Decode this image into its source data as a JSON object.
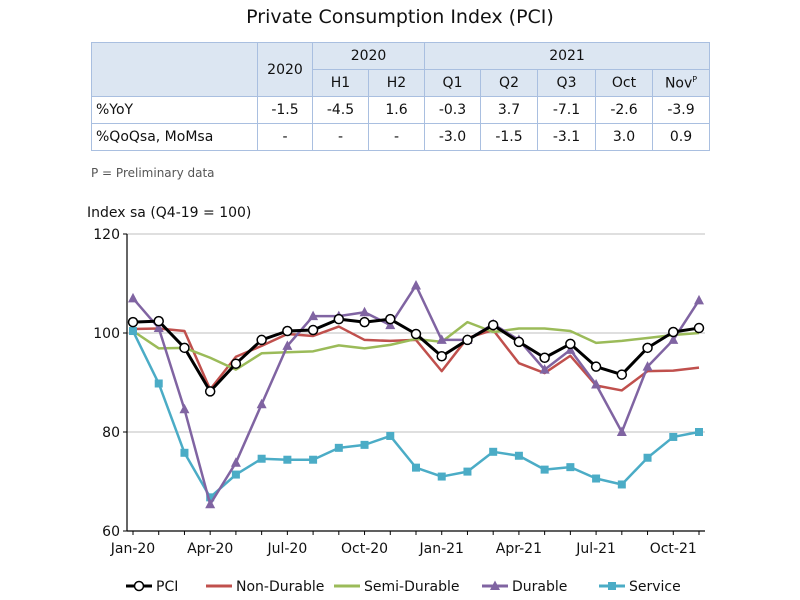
{
  "title": "Private Consumption Index (PCI)",
  "table": {
    "group_headers": [
      "2020",
      "2021"
    ],
    "col_headers": [
      "2020",
      "H1",
      "H2",
      "Q1",
      "Q2",
      "Q3",
      "Oct",
      "Nov"
    ],
    "nov_superscript": "P",
    "rows": [
      {
        "label": "%YoY",
        "values": [
          "-1.5",
          "-4.5",
          "1.6",
          "-0.3",
          "3.7",
          "-7.1",
          "-2.6",
          "-3.9"
        ]
      },
      {
        "label": "%QoQsa, MoMsa",
        "values": [
          "-",
          "-",
          "-",
          "-3.0",
          "-1.5",
          "-3.1",
          "3.0",
          "0.9"
        ]
      }
    ]
  },
  "note": "P = Preliminary data",
  "colors": {
    "pci": "#000000",
    "non_durable": "#c0504d",
    "semi_durable": "#9bbb59",
    "durable": "#8064a2",
    "service": "#4bacc6",
    "grid": "#bfbfbf"
  },
  "chart_data": {
    "type": "line",
    "ylabel": "Index sa (Q4-19 = 100)",
    "ylim": [
      60,
      120
    ],
    "yticks": [
      60,
      80,
      100,
      120
    ],
    "x_months": [
      "Jan-20",
      "Feb-20",
      "Mar-20",
      "Apr-20",
      "May-20",
      "Jun-20",
      "Jul-20",
      "Aug-20",
      "Sep-20",
      "Oct-20",
      "Nov-20",
      "Dec-20",
      "Jan-21",
      "Feb-21",
      "Mar-21",
      "Apr-21",
      "May-21",
      "Jun-21",
      "Jul-21",
      "Aug-21",
      "Sep-21",
      "Oct-21",
      "Nov-21"
    ],
    "xticks": [
      "Jan-20",
      "Apr-20",
      "Jul-20",
      "Oct-20",
      "Jan-21",
      "Apr-21",
      "Jul-21",
      "Oct-21"
    ],
    "legend_position": "bottom",
    "series": [
      {
        "name": "PCI",
        "key": "pci",
        "marker": "circle",
        "values": [
          102.2,
          102.4,
          97.0,
          88.2,
          93.8,
          98.6,
          100.4,
          100.6,
          102.8,
          102.2,
          102.8,
          99.8,
          95.3,
          98.6,
          101.6,
          98.2,
          95.0,
          97.8,
          93.2,
          91.6,
          97.0,
          100.2,
          101.0
        ]
      },
      {
        "name": "Non-Durable",
        "key": "non_durable",
        "marker": "none",
        "values": [
          100.8,
          100.9,
          100.4,
          88.6,
          95.2,
          97.4,
          99.8,
          99.4,
          101.3,
          98.6,
          98.4,
          98.6,
          92.3,
          99.0,
          100.6,
          93.9,
          91.9,
          95.4,
          89.4,
          88.4,
          92.3,
          92.4,
          93.0
        ]
      },
      {
        "name": "Semi-Durable",
        "key": "semi_durable",
        "marker": "none",
        "values": [
          100.4,
          96.9,
          97.0,
          95.0,
          92.6,
          95.9,
          96.1,
          96.3,
          97.5,
          96.9,
          97.6,
          98.8,
          98.2,
          102.2,
          100.2,
          100.9,
          100.9,
          100.4,
          98.0,
          98.4,
          99.0,
          99.6,
          100.0
        ]
      },
      {
        "name": "Durable",
        "key": "durable",
        "marker": "triangle",
        "values": [
          107.0,
          101.0,
          84.6,
          65.4,
          73.8,
          85.6,
          97.4,
          103.4,
          103.4,
          104.2,
          101.6,
          109.6,
          98.6,
          98.6,
          101.8,
          98.6,
          92.6,
          96.6,
          89.6,
          80.0,
          93.2,
          98.6,
          106.6
        ]
      },
      {
        "name": "Service",
        "key": "service",
        "marker": "square",
        "values": [
          100.4,
          89.8,
          75.8,
          66.8,
          71.4,
          74.6,
          74.4,
          74.4,
          76.8,
          77.4,
          79.2,
          72.8,
          71.0,
          72.0,
          76.0,
          75.2,
          72.4,
          72.9,
          70.6,
          69.4,
          74.8,
          79.0,
          80.0
        ]
      }
    ]
  }
}
